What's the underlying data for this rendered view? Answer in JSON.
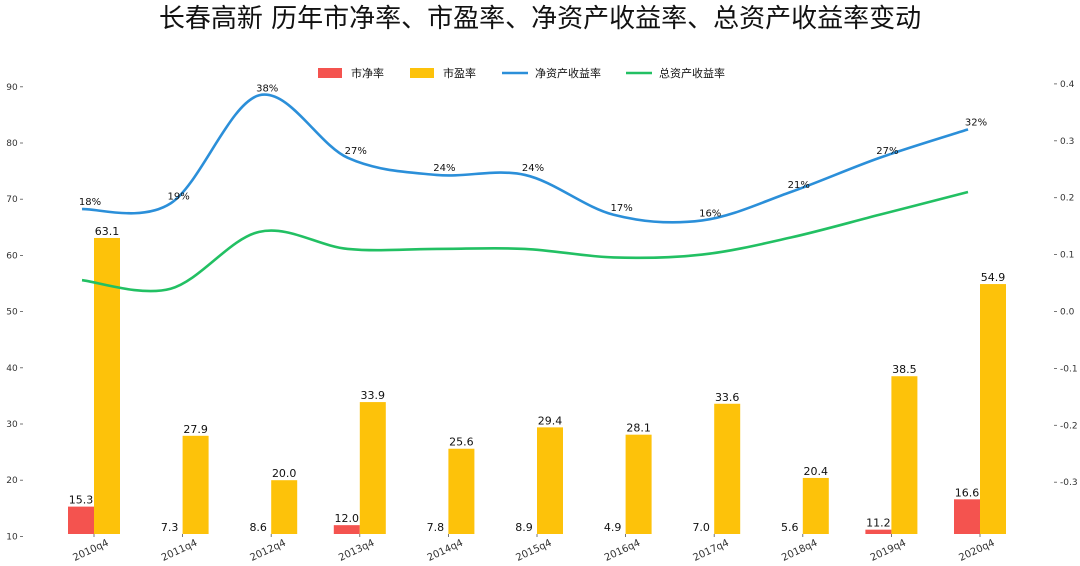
{
  "chart_data": {
    "type": "bar",
    "title": "长春高新 历年市净率、市盈率、净资产收益率、总资产收益率变动",
    "categories": [
      "2010q4",
      "2011q4",
      "2012q4",
      "2013q4",
      "2014q4",
      "2015q4",
      "2016q4",
      "2017q4",
      "2018q4",
      "2019q4",
      "2020q4"
    ],
    "left_axis": {
      "ticks": [
        10,
        20,
        30,
        40,
        50,
        60,
        70,
        80,
        90
      ]
    },
    "right_axis": {
      "ticks": [
        -0.3,
        -0.2,
        -0.1,
        0.0,
        0.1,
        0.2,
        0.3,
        0.4
      ]
    },
    "series": [
      {
        "name": "市净率",
        "type": "bar",
        "axis": "left",
        "color": "#f4534f",
        "values": [
          15.3,
          7.3,
          8.6,
          12.0,
          7.8,
          8.9,
          4.9,
          7.0,
          5.6,
          11.2,
          16.6
        ],
        "labels": [
          "15.3",
          "7.3",
          "8.6",
          "12.0",
          "7.8",
          "8.9",
          "4.9",
          "7.0",
          "5.6",
          "11.2",
          "16.6"
        ]
      },
      {
        "name": "市盈率",
        "type": "bar",
        "axis": "left",
        "color": "#fdc20a",
        "values": [
          63.1,
          27.9,
          20.0,
          33.9,
          25.6,
          29.4,
          28.1,
          33.6,
          20.4,
          38.5,
          54.9
        ],
        "labels": [
          "63.1",
          "27.9",
          "20.0",
          "33.9",
          "25.6",
          "29.4",
          "28.1",
          "33.6",
          "20.4",
          "38.5",
          "54.9"
        ]
      },
      {
        "name": "净资产收益率",
        "type": "line",
        "axis": "right",
        "color": "#2b8fd9",
        "values": [
          0.18,
          0.19,
          0.38,
          0.27,
          0.24,
          0.24,
          0.17,
          0.16,
          0.21,
          0.27,
          0.32
        ],
        "labels": [
          "18%",
          "19%",
          "38%",
          "27%",
          "24%",
          "24%",
          "17%",
          "16%",
          "21%",
          "27%",
          "32%"
        ]
      },
      {
        "name": "总资产收益率",
        "type": "line",
        "axis": "right",
        "color": "#22c063",
        "values": [
          0.055,
          0.04,
          0.14,
          0.11,
          0.11,
          0.11,
          0.095,
          0.1,
          0.13,
          0.17,
          0.21
        ]
      }
    ]
  }
}
